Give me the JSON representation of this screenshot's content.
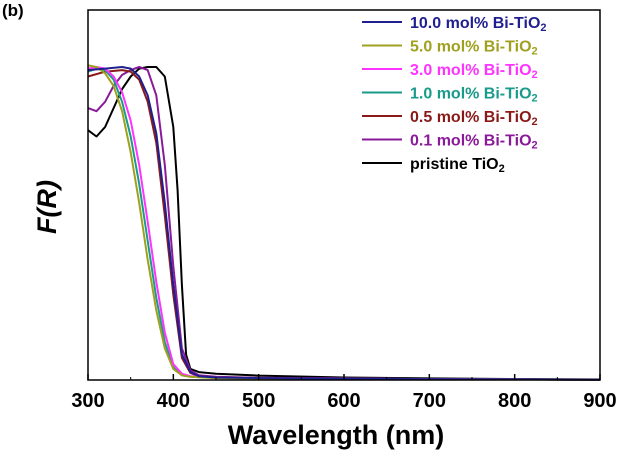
{
  "panel_label": "(b)",
  "chart_data": {
    "type": "line",
    "title": "",
    "xlabel": "Wavelength (nm)",
    "ylabel": "F(R)",
    "xlim": [
      300,
      900
    ],
    "ylim": [
      0,
      1.05
    ],
    "xticks": [
      300,
      400,
      500,
      600,
      700,
      800,
      900
    ],
    "y_tick_labels_shown": false,
    "grid": false,
    "legend_position": "top-right",
    "series": [
      {
        "name": "10.0 mol% Bi-TiO",
        "name_subscript": "2",
        "color": "#1f1f8f",
        "x": [
          300,
          320,
          340,
          350,
          360,
          370,
          380,
          390,
          400,
          410,
          420,
          430,
          450,
          500,
          600,
          700,
          800,
          900
        ],
        "y": [
          0.98,
          0.985,
          0.99,
          0.985,
          0.96,
          0.9,
          0.78,
          0.56,
          0.3,
          0.08,
          0.025,
          0.012,
          0.008,
          0.006,
          0.004,
          0.003,
          0.002,
          0.001
        ]
      },
      {
        "name": "5.0 mol% Bi-TiO",
        "name_subscript": "2",
        "color": "#a0a020",
        "x": [
          300,
          310,
          320,
          330,
          340,
          350,
          360,
          370,
          380,
          390,
          400,
          410,
          420,
          450,
          500,
          600,
          700,
          800,
          900
        ],
        "y": [
          0.995,
          0.99,
          0.97,
          0.93,
          0.85,
          0.72,
          0.56,
          0.38,
          0.22,
          0.1,
          0.035,
          0.015,
          0.01,
          0.006,
          0.004,
          0.003,
          0.002,
          0.002,
          0.001
        ]
      },
      {
        "name": "3.0 mol% Bi-TiO",
        "name_subscript": "2",
        "color": "#ff33ff",
        "x": [
          300,
          310,
          320,
          330,
          340,
          350,
          360,
          370,
          380,
          390,
          400,
          410,
          420,
          430,
          450,
          500,
          600,
          700,
          800,
          900
        ],
        "y": [
          0.985,
          0.99,
          0.985,
          0.96,
          0.91,
          0.82,
          0.68,
          0.5,
          0.31,
          0.15,
          0.05,
          0.02,
          0.012,
          0.01,
          0.007,
          0.005,
          0.004,
          0.003,
          0.002,
          0.001
        ]
      },
      {
        "name": "1.0 mol% Bi-TiO",
        "name_subscript": "2",
        "color": "#1a9a8a",
        "x": [
          300,
          310,
          320,
          330,
          340,
          350,
          360,
          370,
          380,
          390,
          400,
          410,
          420,
          450,
          500,
          600,
          700,
          800,
          900
        ],
        "y": [
          0.975,
          0.985,
          0.98,
          0.95,
          0.88,
          0.77,
          0.62,
          0.44,
          0.26,
          0.12,
          0.04,
          0.015,
          0.01,
          0.007,
          0.005,
          0.004,
          0.003,
          0.002,
          0.001
        ]
      },
      {
        "name": "0.5 mol% Bi-TiO",
        "name_subscript": "2",
        "color": "#8a1a1a",
        "x": [
          300,
          320,
          340,
          350,
          360,
          370,
          380,
          390,
          400,
          410,
          420,
          430,
          450,
          500,
          600,
          700,
          800,
          900
        ],
        "y": [
          0.96,
          0.975,
          0.98,
          0.975,
          0.95,
          0.88,
          0.75,
          0.52,
          0.27,
          0.07,
          0.022,
          0.012,
          0.008,
          0.006,
          0.004,
          0.003,
          0.002,
          0.001
        ]
      },
      {
        "name": "0.1 mol% Bi-TiO",
        "name_subscript": "2",
        "color": "#8a1a9a",
        "x": [
          300,
          310,
          320,
          330,
          340,
          350,
          360,
          370,
          380,
          390,
          400,
          410,
          420,
          430,
          450,
          500,
          600,
          700,
          800,
          900
        ],
        "y": [
          0.86,
          0.85,
          0.88,
          0.93,
          0.965,
          0.98,
          0.99,
          0.98,
          0.9,
          0.68,
          0.36,
          0.1,
          0.03,
          0.015,
          0.01,
          0.007,
          0.005,
          0.003,
          0.002,
          0.001
        ]
      },
      {
        "name": "pristine TiO",
        "name_subscript": "2",
        "color": "#000000",
        "x": [
          300,
          310,
          320,
          330,
          340,
          350,
          360,
          370,
          380,
          390,
          400,
          405,
          410,
          415,
          420,
          430,
          450,
          500,
          600,
          700,
          800,
          900
        ],
        "y": [
          0.79,
          0.77,
          0.8,
          0.86,
          0.92,
          0.96,
          0.985,
          0.99,
          0.99,
          0.96,
          0.8,
          0.6,
          0.3,
          0.08,
          0.035,
          0.025,
          0.02,
          0.014,
          0.008,
          0.005,
          0.003,
          0.002
        ]
      }
    ]
  }
}
